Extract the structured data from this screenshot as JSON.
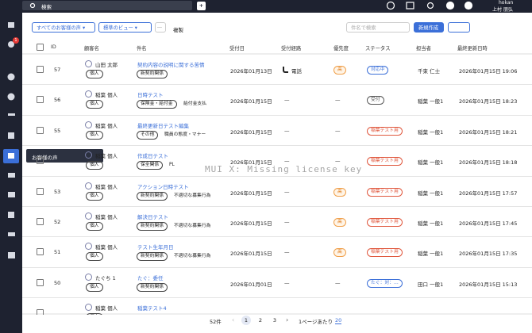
{
  "topbar": {
    "search": "検索",
    "notification_count": "1",
    "user_id": "hokan",
    "user_name": "上村 朋弘"
  },
  "toolbar": {
    "view_filter": "すべてのお客様の声",
    "view": "標準のビュー",
    "more": "···",
    "duplicate": "複製",
    "search_placeholder": "件名で検索",
    "create": "新規作成"
  },
  "tooltip": "お客様の声",
  "watermark": "MUI X: Missing license key",
  "table": {
    "columns": [
      "ID",
      "顧客名",
      "件名",
      "受付日",
      "受付経路",
      "優先度",
      "ステータス",
      "担当者",
      "最終更新日時"
    ],
    "rows": [
      {
        "id": 57,
        "customer": "山田 太郎",
        "customer_type": "個人",
        "subject": "契約内容の説明に関する苦情",
        "tags": [
          "新契約関係"
        ],
        "date": "2026年01月13日",
        "channel": "電話",
        "priority": "高",
        "status": "対応中",
        "status_color": "#3b6fd8",
        "assignee": "千束 仁士",
        "updated": "2026年01月15日 19:06"
      },
      {
        "id": 56,
        "customer": "稲葉 個人",
        "customer_type": "個人",
        "subject": "日時テスト",
        "tags": [
          "保険金・給付金",
          "給付金支払"
        ],
        "date": "2026年01月15日",
        "channel": "—",
        "priority": "—",
        "status": "受付",
        "status_color": "#555555",
        "assignee": "稲葉 一般1",
        "updated": "2026年01月15日 18:23"
      },
      {
        "id": 55,
        "customer": "稲葉 個人",
        "customer_type": "個人",
        "subject": "最終更新日テスト編集",
        "tags": [
          "その他",
          "職員の態度・マナー"
        ],
        "date": "2026年01月15日",
        "channel": "—",
        "priority": "—",
        "status": "稲葉テスト用",
        "status_color": "#e0583e",
        "assignee": "稲葉 一般1",
        "updated": "2026年01月15日 18:21"
      },
      {
        "id": null,
        "customer": "稲葉 個人",
        "customer_type": "個人",
        "subject": "作成日テスト",
        "tags": [
          "保全関係",
          "PL"
        ],
        "date": "2026年01月15日",
        "channel": "—",
        "priority": "—",
        "status": "稲葉テスト用",
        "status_color": "#e0583e",
        "assignee": "稲葉 一般1",
        "updated": "2026年01月15日 18:18"
      },
      {
        "id": 53,
        "customer": "稲葉 個人",
        "customer_type": "個人",
        "subject": "アクション日時テスト",
        "tags": [
          "新契約関係",
          "不適切な募集行為"
        ],
        "date": "2026年01月15日",
        "channel": "—",
        "priority": "高",
        "status": "稲葉テスト用",
        "status_color": "#e0583e",
        "assignee": "稲葉 一般1",
        "updated": "2026年01月15日 17:57"
      },
      {
        "id": 52,
        "customer": "稲葉 個人",
        "customer_type": "個人",
        "subject": "解決日テスト",
        "tags": [
          "新契約関係",
          "不適切な募集行為"
        ],
        "date": "2026年01月15日",
        "channel": "—",
        "priority": "高",
        "status": "稲葉テスト用",
        "status_color": "#e0583e",
        "assignee": "稲葉 一般1",
        "updated": "2026年01月15日 17:45"
      },
      {
        "id": 51,
        "customer": "稲葉 個人",
        "customer_type": "個人",
        "subject": "テスト生年月日",
        "tags": [
          "新契約関係",
          "不適切な募集行為"
        ],
        "date": "2026年01月15日",
        "channel": "—",
        "priority": "高",
        "status": "稲葉テスト用",
        "status_color": "#e0583e",
        "assignee": "稲葉 一般1",
        "updated": "2026年01月15日 17:35"
      },
      {
        "id": 50,
        "customer": "たぐち 1",
        "customer_type": "個人",
        "subject": "たぐ：委任",
        "tags": [
          "新契約関係"
        ],
        "date": "2026年01月01日",
        "channel": "—",
        "priority": "—",
        "status": "たぐ：対：…",
        "status_color": "#3b6fd8",
        "assignee": "田口 一般1",
        "updated": "2026年01月15日 15:13"
      },
      {
        "customer": "稲葉 個人",
        "customer_type": "個人",
        "subject": "稲葉テスト4"
      }
    ]
  },
  "pagination": {
    "total": "52件",
    "pages": [
      "1",
      "2",
      "3"
    ],
    "per_page_label": "1ページあたり",
    "per_page": "20"
  }
}
